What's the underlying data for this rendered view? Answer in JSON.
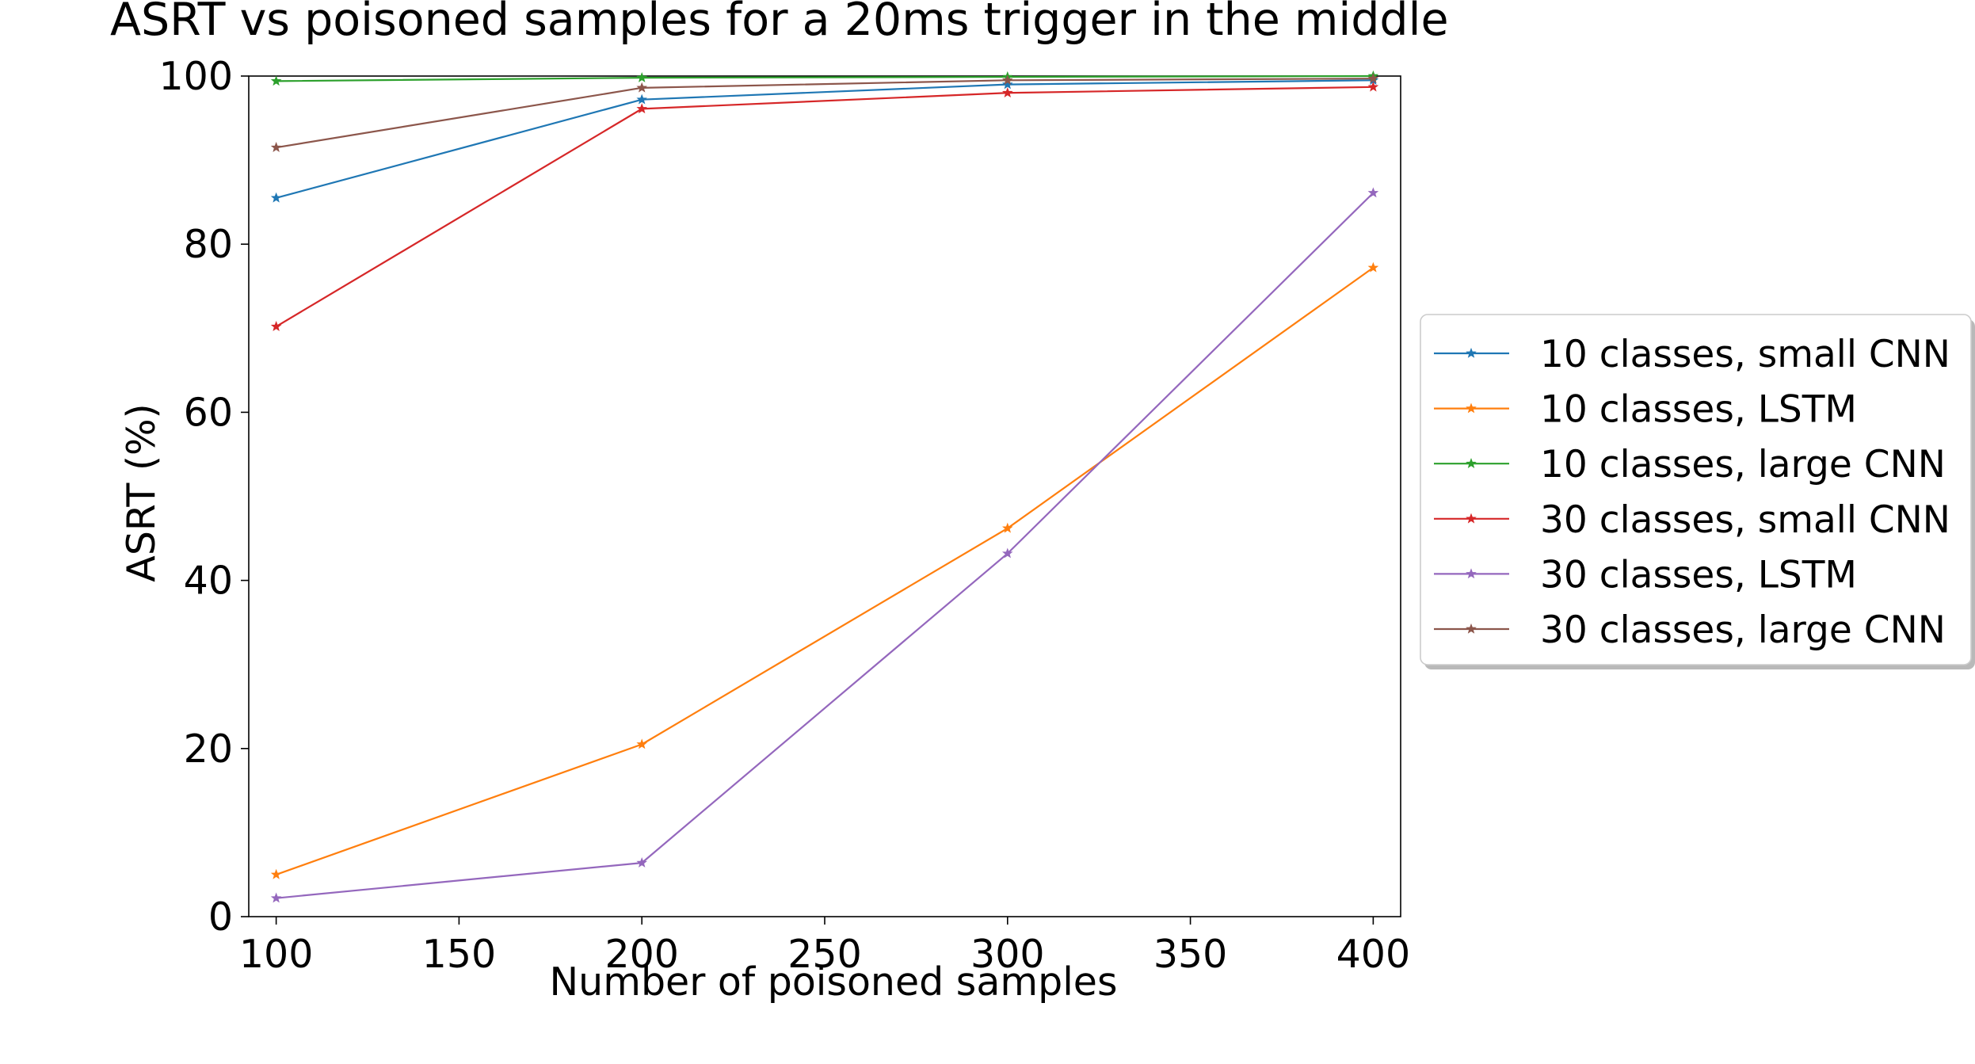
{
  "chart_data": {
    "type": "line",
    "title": "ASRT vs poisoned samples for a 20ms trigger in the middle",
    "xlabel": "Number of poisoned samples",
    "ylabel": "ASRT (%)",
    "xlim": [
      92.5,
      407.5
    ],
    "ylim": [
      0,
      100
    ],
    "xticks": [
      100,
      150,
      200,
      250,
      300,
      350,
      400
    ],
    "yticks": [
      0,
      20,
      40,
      60,
      80,
      100
    ],
    "grid": false,
    "legend_position": "right, outside plot area",
    "marker": "star",
    "x": [
      100,
      200,
      300,
      400
    ],
    "series": [
      {
        "name": "10 classes, small CNN",
        "color": "#1f77b4",
        "values": [
          85.5,
          97.2,
          99.0,
          99.5
        ]
      },
      {
        "name": "10 classes, LSTM",
        "color": "#ff7f0e",
        "values": [
          5.0,
          20.5,
          46.2,
          77.2
        ]
      },
      {
        "name": "10 classes, large CNN",
        "color": "#2ca02c",
        "values": [
          99.4,
          99.8,
          99.9,
          100.0
        ]
      },
      {
        "name": "30 classes, small CNN",
        "color": "#d62728",
        "values": [
          70.2,
          96.1,
          98.0,
          98.7
        ]
      },
      {
        "name": "30 classes, LSTM",
        "color": "#9467bd",
        "values": [
          2.2,
          6.4,
          43.2,
          86.1
        ]
      },
      {
        "name": "30 classes, large CNN",
        "color": "#8c564b",
        "values": [
          91.5,
          98.6,
          99.5,
          99.7
        ]
      }
    ]
  }
}
